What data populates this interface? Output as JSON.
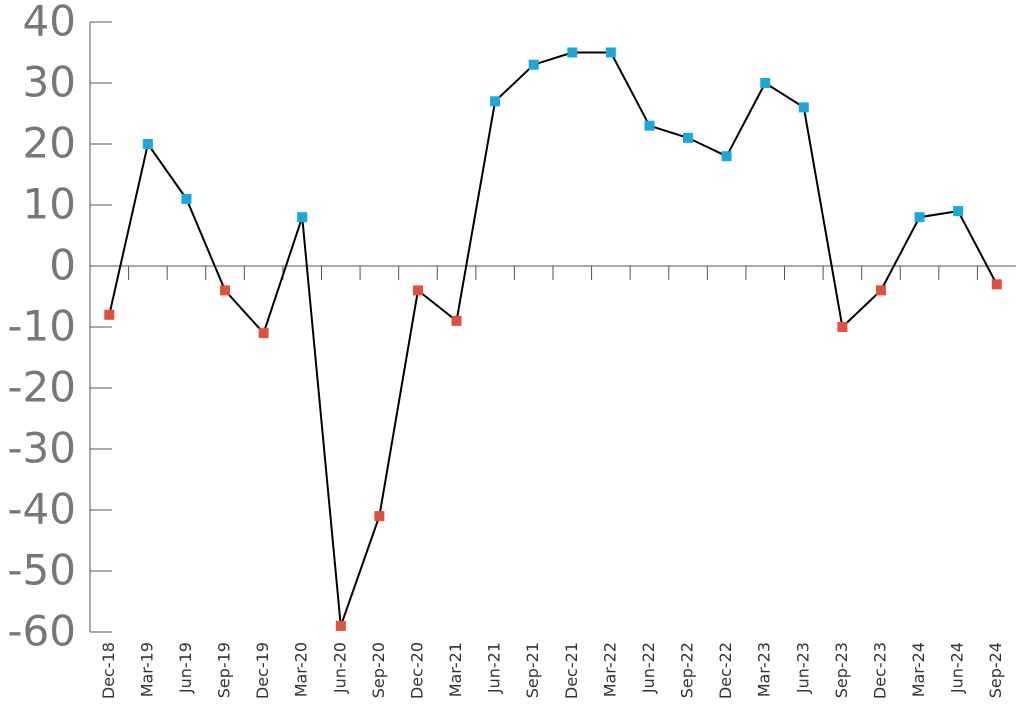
{
  "chart_data": {
    "type": "line",
    "categories": [
      "Dec-18",
      "Mar-19",
      "Jun-19",
      "Sep-19",
      "Dec-19",
      "Mar-20",
      "Jun-20",
      "Sep-20",
      "Dec-20",
      "Mar-21",
      "Jun-21",
      "Sep-21",
      "Dec-21",
      "Mar-22",
      "Jun-22",
      "Sep-22",
      "Dec-22",
      "Mar-23",
      "Jun-23",
      "Sep-23",
      "Dec-23",
      "Mar-24",
      "Jun-24",
      "Sep-24"
    ],
    "values": [
      -8,
      20,
      11,
      -4,
      -11,
      8,
      -59,
      -41,
      -4,
      -9,
      27,
      33,
      35,
      35,
      23,
      21,
      18,
      30,
      26,
      -10,
      -4,
      8,
      9,
      -3
    ],
    "line_color": "#000000",
    "positive_color": "#1aa7dc",
    "negative_color": "#e0503c",
    "ylim": [
      -60,
      40
    ],
    "yticks": [
      -60,
      -50,
      -40,
      -30,
      -20,
      -10,
      0,
      10,
      20,
      30,
      40
    ]
  }
}
